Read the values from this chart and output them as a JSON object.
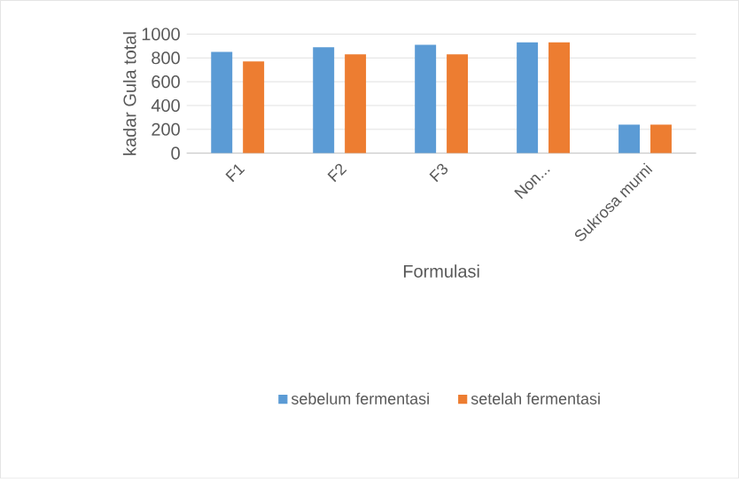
{
  "chart_data": {
    "type": "bar",
    "xlabel": "Formulasi",
    "ylabel": "kadar Gula total",
    "categories": [
      "F1",
      "F2",
      "F3",
      "Non...",
      "Sukrosa murni"
    ],
    "series": [
      {
        "name": "sebelum fermentasi",
        "color": "#5b9bd5",
        "values": [
          850,
          890,
          910,
          930,
          240
        ]
      },
      {
        "name": "setelah fermentasi",
        "color": "#ed7d31",
        "values": [
          770,
          830,
          830,
          930,
          240
        ]
      }
    ],
    "ylim": [
      0,
      1000
    ],
    "yticks": [
      0,
      200,
      400,
      600,
      800,
      1000
    ],
    "grid": "y",
    "legend": "bottom"
  }
}
